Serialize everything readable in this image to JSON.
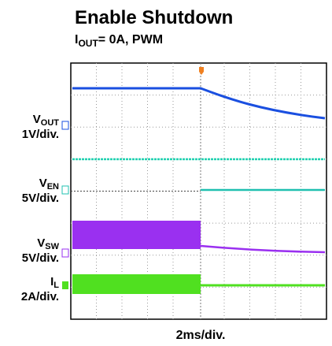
{
  "title": "Enable Shutdown",
  "subtitle": {
    "main": "I",
    "sub": "OUT",
    "rest": "= 0A, PWM"
  },
  "channels": [
    {
      "main": "V",
      "sub": "OUT",
      "scale": "1V/div."
    },
    {
      "main": "V",
      "sub": "EN",
      "scale": "5V/div."
    },
    {
      "main": "V",
      "sub": "SW",
      "scale": "5V/div."
    },
    {
      "main": "I",
      "sub": "L",
      "scale": "2A/div."
    }
  ],
  "x_label": "2ms/div."
}
